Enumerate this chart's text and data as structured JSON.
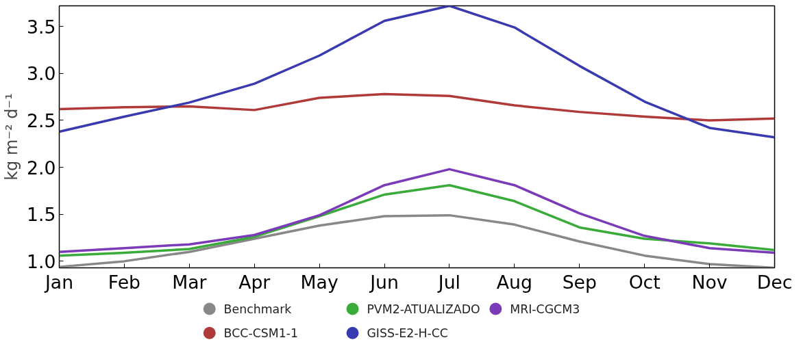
{
  "chart_data": {
    "type": "line",
    "ylabel": "kg m⁻² d⁻¹",
    "categories": [
      "Jan",
      "Feb",
      "Mar",
      "Apr",
      "May",
      "Jun",
      "Jul",
      "Aug",
      "Sep",
      "Oct",
      "Nov",
      "Dec"
    ],
    "ylim": [
      0.93,
      3.72
    ],
    "yticks": [
      {
        "value": 1.0,
        "label": "1.0"
      },
      1.5,
      {
        "value": 2.0,
        "label": "2.0"
      },
      2.5,
      {
        "value": 3.0,
        "label": "3.0"
      },
      3.5
    ],
    "grid": false,
    "legend": "bottom",
    "marker": "none",
    "line_style": "solid",
    "series": [
      {
        "name": "Benchmark",
        "color": "#888888",
        "values": [
          0.94,
          1.0,
          1.1,
          1.24,
          1.38,
          1.48,
          1.49,
          1.39,
          1.21,
          1.06,
          0.97,
          0.93
        ]
      },
      {
        "name": "BCC-CSM1-1",
        "color": "#b03a3a",
        "values": [
          2.62,
          2.64,
          2.65,
          2.61,
          2.74,
          2.78,
          2.76,
          2.66,
          2.59,
          2.54,
          2.5,
          2.52
        ]
      },
      {
        "name": "PVM2-ATUALIZADO",
        "color": "#3aaa3a",
        "values": [
          1.06,
          1.09,
          1.13,
          1.26,
          1.48,
          1.71,
          1.81,
          1.64,
          1.36,
          1.24,
          1.19,
          1.12
        ]
      },
      {
        "name": "GISS-E2-H-CC",
        "color": "#3a3ab0",
        "values": [
          2.38,
          2.54,
          2.69,
          2.89,
          3.19,
          3.56,
          3.72,
          3.49,
          3.08,
          2.7,
          2.42,
          2.32
        ]
      },
      {
        "name": "MRI-CGCM3",
        "color": "#7b3ab8",
        "values": [
          1.1,
          1.14,
          1.18,
          1.28,
          1.49,
          1.81,
          1.98,
          1.81,
          1.51,
          1.27,
          1.14,
          1.09
        ]
      }
    ]
  }
}
